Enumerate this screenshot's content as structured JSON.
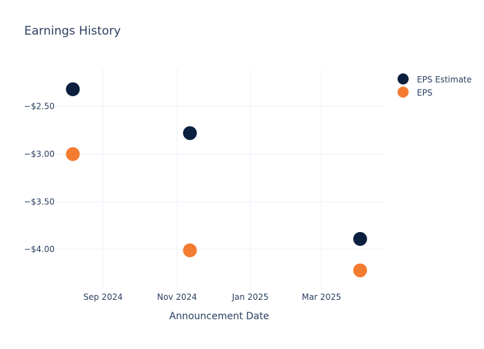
{
  "chart_data": {
    "type": "scatter",
    "title": "Earnings History",
    "xlabel": "Announcement Date",
    "ylabel": "",
    "x_ticks": [
      "Sep 2024",
      "Nov 2024",
      "Jan 2025",
      "Mar 2025"
    ],
    "y_ticks": [
      "−$2.50",
      "−$3.00",
      "−$3.50",
      "−$4.00"
    ],
    "ylim": [
      -4.42,
      -2.11
    ],
    "grid": true,
    "legend": "top-right",
    "series": [
      {
        "name": "EPS Estimate",
        "color": "#0b1f3f",
        "points": [
          {
            "x": "2024-08-07",
            "y": -2.32
          },
          {
            "x": "2024-11-12",
            "y": -2.78
          },
          {
            "x": "2025-04-02",
            "y": -3.89
          }
        ]
      },
      {
        "name": "EPS",
        "color": "#f47c30",
        "points": [
          {
            "x": "2024-08-07",
            "y": -3.0
          },
          {
            "x": "2024-11-12",
            "y": -4.01
          },
          {
            "x": "2025-04-02",
            "y": -4.22
          }
        ]
      }
    ]
  }
}
